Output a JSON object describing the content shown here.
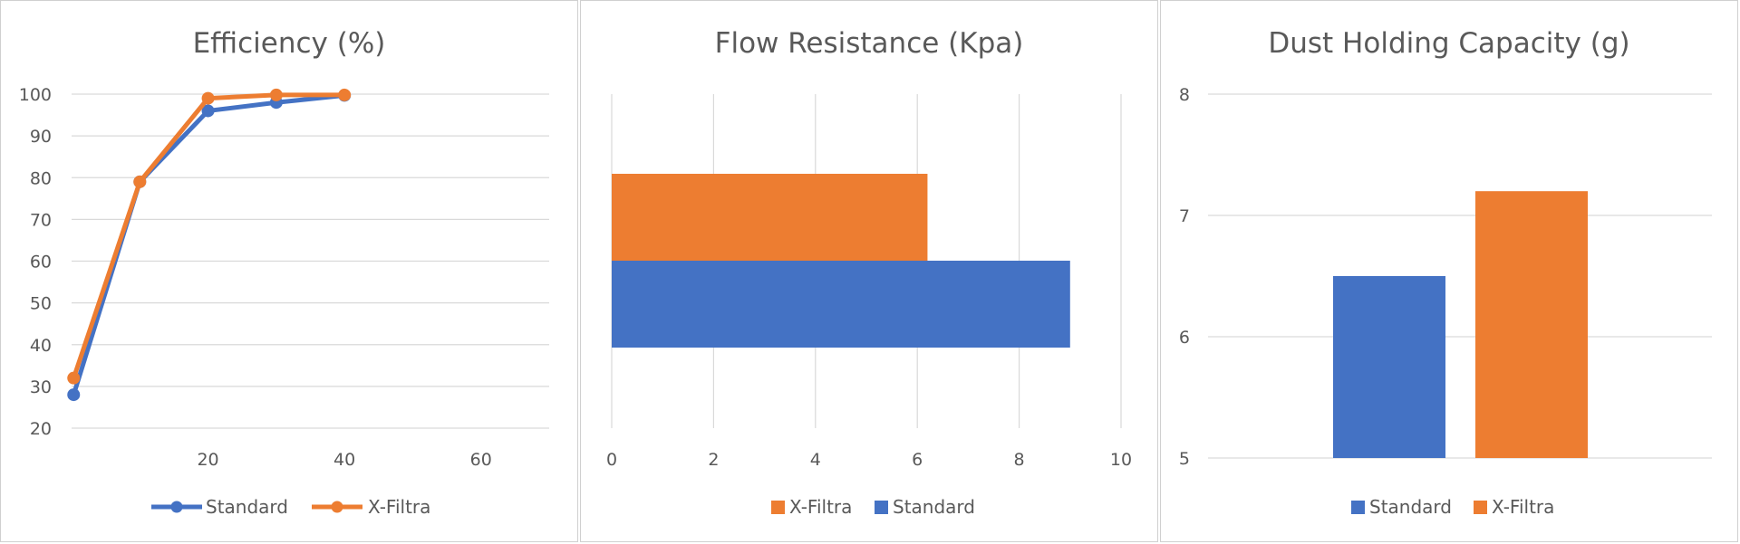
{
  "colors": {
    "standard": "#4472c4",
    "xfiltra": "#ed7d31"
  },
  "chart_data": [
    {
      "type": "line",
      "title": "Efficiency (%)",
      "xlim": [
        0,
        70
      ],
      "ylim": [
        20,
        100
      ],
      "xticks": [
        "20",
        "40",
        "60"
      ],
      "yticks": [
        "100",
        "90",
        "80",
        "70",
        "60",
        "50",
        "40",
        "30",
        "20"
      ],
      "grid": true,
      "legend": "bottom",
      "series": [
        {
          "name": "Standard",
          "x": [
            0.3,
            10,
            20,
            30,
            40
          ],
          "y": [
            28,
            79,
            96,
            98,
            99.7
          ]
        },
        {
          "name": "X-Filtra",
          "x": [
            0.3,
            10,
            20,
            30,
            40
          ],
          "y": [
            32,
            79,
            99,
            99.8,
            99.8
          ]
        }
      ]
    },
    {
      "type": "bar",
      "orientation": "horizontal",
      "title": "Flow Resistance (Kpa)",
      "xlim": [
        0,
        10
      ],
      "xticks": [
        "0",
        "2",
        "4",
        "6",
        "8",
        "10"
      ],
      "grid": true,
      "legend": "bottom",
      "series": [
        {
          "name": "X-Filtra",
          "values": [
            6.2
          ]
        },
        {
          "name": "Standard",
          "values": [
            9.0
          ]
        }
      ]
    },
    {
      "type": "bar",
      "title": "Dust Holding Capacity (g)",
      "ylim": [
        5,
        8
      ],
      "yticks": [
        "8",
        "7",
        "6",
        "5"
      ],
      "grid": true,
      "legend": "bottom",
      "series": [
        {
          "name": "Standard",
          "values": [
            6.5
          ]
        },
        {
          "name": "X-Filtra",
          "values": [
            7.2
          ]
        }
      ]
    }
  ]
}
